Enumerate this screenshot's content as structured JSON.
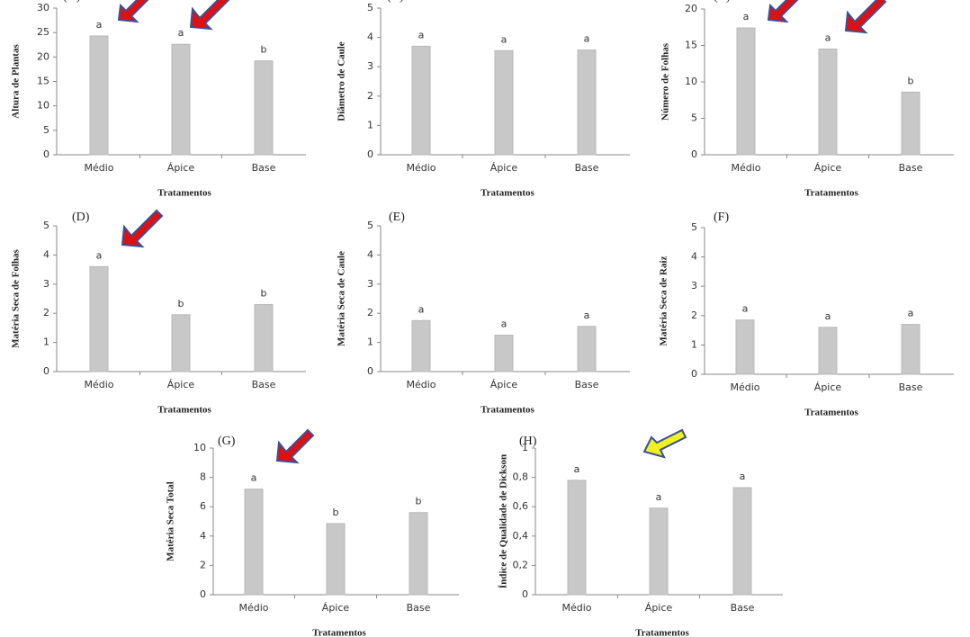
{
  "chart_data": [
    {
      "type": "bar",
      "label": "(A)",
      "ylabel": "Altura de Plantas",
      "xlabel": "Tratamentos",
      "categories": [
        "Médio",
        "Ápice",
        "Base"
      ],
      "values": [
        24.3,
        22.6,
        19.2
      ],
      "letters": [
        "a",
        "a",
        "b"
      ],
      "color": "#c8c8c8",
      "ylim": [
        0,
        30
      ],
      "yticks": [
        0,
        5,
        10,
        15,
        20,
        25,
        30
      ]
    },
    {
      "type": "bar",
      "label": "(B)",
      "ylabel": "Diâmetro de Caule",
      "xlabel": "Tratamentos",
      "categories": [
        "Médio",
        "Ápice",
        "Base"
      ],
      "values": [
        3.7,
        3.55,
        3.57
      ],
      "letters": [
        "a",
        "a",
        "a"
      ],
      "color": "#c8c8c8",
      "ylim": [
        0,
        5
      ],
      "yticks": [
        0,
        1,
        2,
        3,
        4,
        5
      ]
    },
    {
      "type": "bar",
      "label": "(C)",
      "ylabel": "Número de Folhas",
      "xlabel": "Tratamentos",
      "categories": [
        "Médio",
        "Ápice",
        "Base"
      ],
      "values": [
        17.4,
        14.5,
        8.6
      ],
      "letters": [
        "a",
        "a",
        "b"
      ],
      "color": "#c8c8c8",
      "ylim": [
        0,
        20
      ],
      "yticks": [
        0,
        5,
        10,
        15,
        20
      ]
    },
    {
      "type": "bar",
      "label": "(D)",
      "ylabel": "Matéria Seca de Folhas",
      "xlabel": "Tratamentos",
      "categories": [
        "Médio",
        "Ápice",
        "Base"
      ],
      "values": [
        3.6,
        1.95,
        2.3
      ],
      "letters": [
        "a",
        "b",
        "b"
      ],
      "color": "#c8c8c8",
      "ylim": [
        0,
        5
      ],
      "yticks": [
        0,
        1,
        2,
        3,
        4,
        5
      ]
    },
    {
      "type": "bar",
      "label": "(E)",
      "ylabel": "Matéria Seca de Caule",
      "xlabel": "Tratamentos",
      "categories": [
        "Médio",
        "Ápice",
        "Base"
      ],
      "values": [
        1.75,
        1.25,
        1.55
      ],
      "letters": [
        "a",
        "a",
        "a"
      ],
      "color": "#c8c8c8",
      "ylim": [
        0,
        5
      ],
      "yticks": [
        0,
        1,
        2,
        3,
        4,
        5
      ]
    },
    {
      "type": "bar",
      "label": "(F)",
      "ylabel": "Matéria Seca de Raiz",
      "xlabel": "Tratamentos",
      "categories": [
        "Médio",
        "Ápice",
        "Base"
      ],
      "values": [
        1.85,
        1.6,
        1.7
      ],
      "letters": [
        "a",
        "a",
        "a"
      ],
      "color": "#c8c8c8",
      "ylim": [
        0,
        5
      ],
      "yticks": [
        0,
        1,
        2,
        3,
        4,
        5
      ]
    },
    {
      "type": "bar",
      "label": "(G)",
      "ylabel": "Matéria Seca Total",
      "xlabel": "Tratamentos",
      "categories": [
        "Médio",
        "Ápice",
        "Base"
      ],
      "values": [
        7.2,
        4.85,
        5.6
      ],
      "letters": [
        "a",
        "b",
        "b"
      ],
      "color": "#c8c8c8",
      "ylim": [
        0,
        10
      ],
      "yticks": [
        0,
        2,
        4,
        6,
        8,
        10
      ]
    },
    {
      "type": "bar",
      "label": "(H)",
      "ylabel": "Índice de Qualidade de Dickson",
      "xlabel": "Tratamentos",
      "categories": [
        "Médio",
        "Ápice",
        "Base"
      ],
      "values": [
        0.78,
        0.59,
        0.73
      ],
      "letters": [
        "a",
        "a",
        "a"
      ],
      "color": "#c8c8c8",
      "ylim": [
        0,
        1
      ],
      "yticks": [
        0,
        {
          "value": 0.2,
          "label": "0,2"
        },
        {
          "value": 0.4,
          "label": "0,4"
        },
        {
          "value": 0.6,
          "label": "0,6"
        },
        {
          "value": 0.8,
          "label": "0,8"
        },
        1
      ]
    }
  ]
}
